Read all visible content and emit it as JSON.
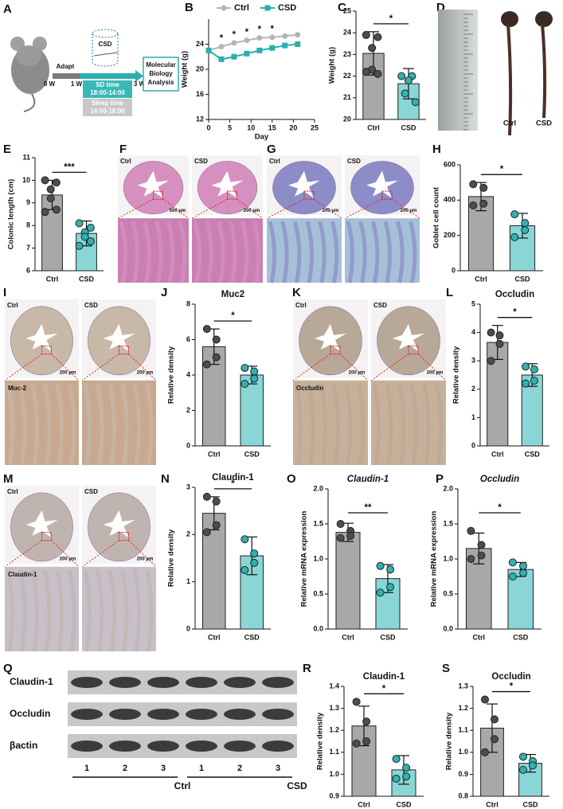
{
  "panel_labels": [
    "A",
    "B",
    "C",
    "D",
    "E",
    "F",
    "G",
    "H",
    "I",
    "J",
    "K",
    "L",
    "M",
    "N",
    "O",
    "P",
    "Q",
    "R",
    "S"
  ],
  "schematic": {
    "adapt": "Adapt",
    "weeks": [
      "0 W",
      "1 W",
      "3 W"
    ],
    "device": "CSD",
    "sd_time": "SD time",
    "sd_hours": "18:00-14:00",
    "sleep_time": "Sleep time",
    "sleep_hours": "14:00-18:00",
    "analysis": [
      "Molecular",
      "Biology",
      "Analysis"
    ]
  },
  "photo_D": {
    "labels": [
      "Ctrl",
      "CSD"
    ]
  },
  "histology": {
    "F": {
      "groups": [
        "Ctrl",
        "CSD"
      ],
      "scales": [
        "500 μm",
        "200 μm"
      ]
    },
    "G": {
      "groups": [
        "Ctrl",
        "CSD"
      ],
      "scales": [
        "200 μm",
        "200 μm"
      ]
    },
    "I": {
      "groups": [
        "Ctrl",
        "CSD"
      ],
      "scales": [
        "200 μm",
        "200 μm"
      ],
      "stain": "Muc-2"
    },
    "K": {
      "groups": [
        "Ctrl",
        "CSD"
      ],
      "scales": [
        "200 μm",
        "200 μm"
      ],
      "stain": "Occludin"
    },
    "M": {
      "groups": [
        "Ctrl",
        "CSD"
      ],
      "scales": [
        "200 μm",
        "200 μm"
      ],
      "stain": "Claudin-1"
    }
  },
  "western_blot": {
    "rows": [
      "Claudin-1",
      "Occludin",
      "βactin"
    ],
    "lanes": [
      "1",
      "2",
      "3",
      "1",
      "2",
      "3"
    ],
    "groups": [
      "Ctrl",
      "CSD"
    ]
  },
  "chart_data": [
    {
      "type": "line",
      "xlabel": "Day",
      "ylabel": "Weight (g)",
      "x": [
        0,
        3,
        6,
        9,
        12,
        15,
        18,
        21
      ],
      "series": [
        {
          "name": "Ctrl",
          "color": "#b5b5b5",
          "values": [
            23,
            23.6,
            24.2,
            24.6,
            25,
            25.1,
            25.3,
            25.5
          ]
        },
        {
          "name": "CSD",
          "color": "#2aaeae",
          "values": [
            23,
            21.6,
            22,
            22.5,
            23,
            23.4,
            23.8,
            24
          ]
        }
      ],
      "annotations": [
        {
          "x": 3,
          "text": "*"
        },
        {
          "x": 6,
          "text": "*"
        },
        {
          "x": 9,
          "text": "*"
        },
        {
          "x": 12,
          "text": "*"
        },
        {
          "x": 15,
          "text": "*"
        }
      ],
      "xlim": [
        0,
        25
      ],
      "xticks": [
        0,
        5,
        10,
        15,
        20,
        25
      ],
      "ylim": [
        12,
        28
      ],
      "yticks": [
        12,
        16,
        20,
        24
      ],
      "legend": "top"
    },
    {
      "type": "bar",
      "ylabel": "Weight (g)",
      "categories": [
        "Ctrl",
        "CSD"
      ],
      "values": [
        23.05,
        21.65
      ],
      "errors": [
        1.0,
        0.7
      ],
      "points": [
        [
          23.9,
          23.8,
          23.3,
          22.3,
          22.1,
          22.2
        ],
        [
          22.0,
          22.0,
          21.8,
          21.2,
          20.8
        ]
      ],
      "significance": "*",
      "colors": [
        "#a8a8a8",
        "#8ad6d6"
      ],
      "point_colors": [
        "#4d4d4d",
        "#30b2b2"
      ],
      "ylim": [
        20,
        25
      ],
      "yticks": [
        20,
        21,
        22,
        23,
        24,
        25
      ]
    },
    {
      "type": "bar",
      "ylabel": "Colonic length (cm)",
      "categories": [
        "Ctrl",
        "CSD"
      ],
      "values": [
        9.35,
        7.65
      ],
      "errors": [
        0.65,
        0.55
      ],
      "points": [
        [
          10.0,
          9.9,
          9.6,
          9.2,
          8.7,
          8.6
        ],
        [
          8.1,
          7.9,
          7.7,
          7.5,
          7.3,
          7.1
        ]
      ],
      "significance": "***",
      "colors": [
        "#a8a8a8",
        "#8ad6d6"
      ],
      "point_colors": [
        "#4d4d4d",
        "#30b2b2"
      ],
      "ylim": [
        6,
        11
      ],
      "yticks": [
        6,
        7,
        8,
        9,
        10,
        11
      ]
    },
    {
      "type": "bar",
      "ylabel": "Goblet cell count",
      "categories": [
        "Ctrl",
        "CSD"
      ],
      "values": [
        420,
        255
      ],
      "errors": [
        80,
        70
      ],
      "points": [
        [
          490,
          470,
          380,
          370
        ],
        [
          320,
          270,
          230,
          190
        ]
      ],
      "significance": "*",
      "colors": [
        "#a8a8a8",
        "#8ad6d6"
      ],
      "point_colors": [
        "#4d4d4d",
        "#30b2b2"
      ],
      "ylim": [
        0,
        600
      ],
      "yticks": [
        0,
        200,
        400,
        600
      ]
    },
    {
      "type": "bar",
      "title": "Muc2",
      "ylabel": "Relative density",
      "categories": [
        "Ctrl",
        "CSD"
      ],
      "values": [
        5.6,
        4.0
      ],
      "errors": [
        1.0,
        0.5
      ],
      "points": [
        [
          6.6,
          6.0,
          5.0,
          4.6
        ],
        [
          4.4,
          4.2,
          3.8,
          3.5
        ]
      ],
      "significance": "*",
      "colors": [
        "#a8a8a8",
        "#8ad6d6"
      ],
      "point_colors": [
        "#4d4d4d",
        "#30b2b2"
      ],
      "ylim": [
        0,
        8
      ],
      "yticks": [
        0,
        2,
        4,
        6,
        8
      ]
    },
    {
      "type": "bar",
      "title": "Occludin",
      "ylabel": "Relative density",
      "categories": [
        "Ctrl",
        "CSD"
      ],
      "values": [
        3.65,
        2.5
      ],
      "errors": [
        0.6,
        0.4
      ],
      "points": [
        [
          4.0,
          3.9,
          3.6,
          3.0
        ],
        [
          2.8,
          2.7,
          2.3,
          2.2
        ]
      ],
      "significance": "*",
      "colors": [
        "#a8a8a8",
        "#8ad6d6"
      ],
      "point_colors": [
        "#4d4d4d",
        "#30b2b2"
      ],
      "ylim": [
        0,
        5
      ],
      "yticks": [
        0,
        1,
        2,
        3,
        4,
        5
      ]
    },
    {
      "type": "bar",
      "title": "Claudin-1",
      "ylabel": "Relative density",
      "categories": [
        "Ctrl",
        "CSD"
      ],
      "values": [
        2.45,
        1.55
      ],
      "errors": [
        0.35,
        0.4
      ],
      "points": [
        [
          2.8,
          2.7,
          2.2,
          2.05
        ],
        [
          1.9,
          1.6,
          1.4,
          1.25
        ]
      ],
      "significance": "*",
      "colors": [
        "#a8a8a8",
        "#8ad6d6"
      ],
      "point_colors": [
        "#4d4d4d",
        "#30b2b2"
      ],
      "ylim": [
        0,
        3
      ],
      "yticks": [
        0,
        1,
        2,
        3
      ]
    },
    {
      "type": "bar",
      "title": "Claudin-1",
      "italic_title": true,
      "ylabel": "Relative mRNA expression",
      "categories": [
        "Ctrl",
        "CSD"
      ],
      "values": [
        1.38,
        0.72
      ],
      "errors": [
        0.13,
        0.2
      ],
      "points": [
        [
          1.5,
          1.4,
          1.33,
          1.3
        ],
        [
          0.9,
          0.85,
          0.6,
          0.52
        ]
      ],
      "significance": "**",
      "colors": [
        "#a8a8a8",
        "#8ad6d6"
      ],
      "point_colors": [
        "#4d4d4d",
        "#30b2b2"
      ],
      "ylim": [
        0,
        2
      ],
      "yticks": [
        {
          "value": 0,
          "label": "0.0"
        },
        0.5,
        {
          "value": 1,
          "label": "1.0"
        },
        1.5,
        {
          "value": 2,
          "label": "2.0"
        }
      ]
    },
    {
      "type": "bar",
      "title": "Occludin",
      "italic_title": true,
      "ylabel": "Relative mRNA expression",
      "categories": [
        "Ctrl",
        "CSD"
      ],
      "values": [
        1.15,
        0.85
      ],
      "errors": [
        0.22,
        0.1
      ],
      "points": [
        [
          1.4,
          1.2,
          1.05,
          1.0
        ],
        [
          0.95,
          0.9,
          0.8,
          0.75
        ]
      ],
      "significance": "*",
      "colors": [
        "#a8a8a8",
        "#8ad6d6"
      ],
      "point_colors": [
        "#4d4d4d",
        "#30b2b2"
      ],
      "ylim": [
        0,
        2
      ],
      "yticks": [
        {
          "value": 0,
          "label": "0.0"
        },
        0.5,
        {
          "value": 1,
          "label": "1.0"
        },
        1.5,
        {
          "value": 2,
          "label": "2.0"
        }
      ]
    },
    {
      "type": "bar",
      "title": "Claudin-1",
      "ylabel": "Relative density",
      "categories": [
        "Ctrl",
        "CSD"
      ],
      "values": [
        1.22,
        1.02
      ],
      "errors": [
        0.09,
        0.065
      ],
      "points": [
        [
          1.33,
          1.24,
          1.15,
          1.14
        ],
        [
          1.07,
          1.03,
          0.99,
          0.98
        ]
      ],
      "significance": "*",
      "colors": [
        "#a8a8a8",
        "#8ad6d6"
      ],
      "point_colors": [
        "#4d4d4d",
        "#30b2b2"
      ],
      "ylim": [
        0.9,
        1.4
      ],
      "yticks": [
        0.9,
        {
          "value": 1,
          "label": "1.0"
        },
        1.1,
        1.2,
        1.3,
        1.4
      ]
    },
    {
      "type": "bar",
      "title": "Occludin",
      "ylabel": "Relative density",
      "categories": [
        "Ctrl",
        "CSD"
      ],
      "values": [
        1.11,
        0.95
      ],
      "errors": [
        0.11,
        0.04
      ],
      "points": [
        [
          1.24,
          1.15,
          1.06,
          1.0
        ],
        [
          0.98,
          0.96,
          0.94,
          0.92
        ]
      ],
      "significance": "*",
      "colors": [
        "#a8a8a8",
        "#8ad6d6"
      ],
      "point_colors": [
        "#4d4d4d",
        "#30b2b2"
      ],
      "ylim": [
        0.8,
        1.3
      ],
      "yticks": [
        0.8,
        0.9,
        {
          "value": 1,
          "label": "1.0"
        },
        1.1,
        1.2,
        1.3
      ]
    }
  ]
}
